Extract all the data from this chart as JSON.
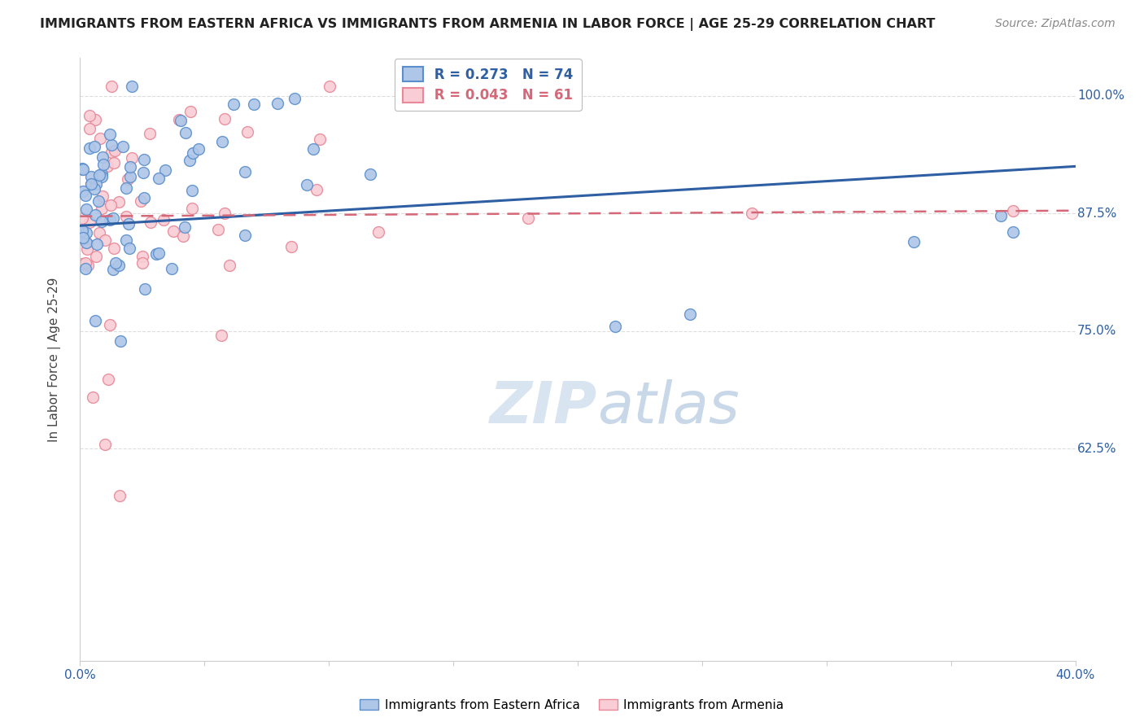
{
  "title": "IMMIGRANTS FROM EASTERN AFRICA VS IMMIGRANTS FROM ARMENIA IN LABOR FORCE | AGE 25-29 CORRELATION CHART",
  "source": "Source: ZipAtlas.com",
  "ylabel": "In Labor Force | Age 25-29",
  "xlim": [
    0.0,
    0.4
  ],
  "ylim": [
    0.4,
    1.04
  ],
  "blue_R": 0.273,
  "blue_N": 74,
  "pink_R": 0.043,
  "pink_N": 61,
  "blue_fill_color": "#AEC6E8",
  "blue_edge_color": "#5B8FCC",
  "pink_fill_color": "#F9CDD5",
  "pink_edge_color": "#E88898",
  "blue_line_color": "#2E5FA3",
  "pink_line_color": "#D46878",
  "legend_label_blue": "Immigrants from Eastern Africa",
  "legend_label_pink": "Immigrants from Armenia",
  "watermark_color": "#D8E4F0",
  "background_color": "#FFFFFF",
  "grid_color": "#DDDDDD",
  "ytick_right_labels": [
    "100.0%",
    "87.5%",
    "75.0%",
    "62.5%"
  ],
  "ytick_right_vals": [
    1.0,
    0.875,
    0.75,
    0.625
  ],
  "xtick_show": [
    "0.0%",
    "40.0%"
  ],
  "title_color": "#222222",
  "source_color": "#888888",
  "axis_label_color": "#2E5FA3",
  "scatter_size": 100
}
